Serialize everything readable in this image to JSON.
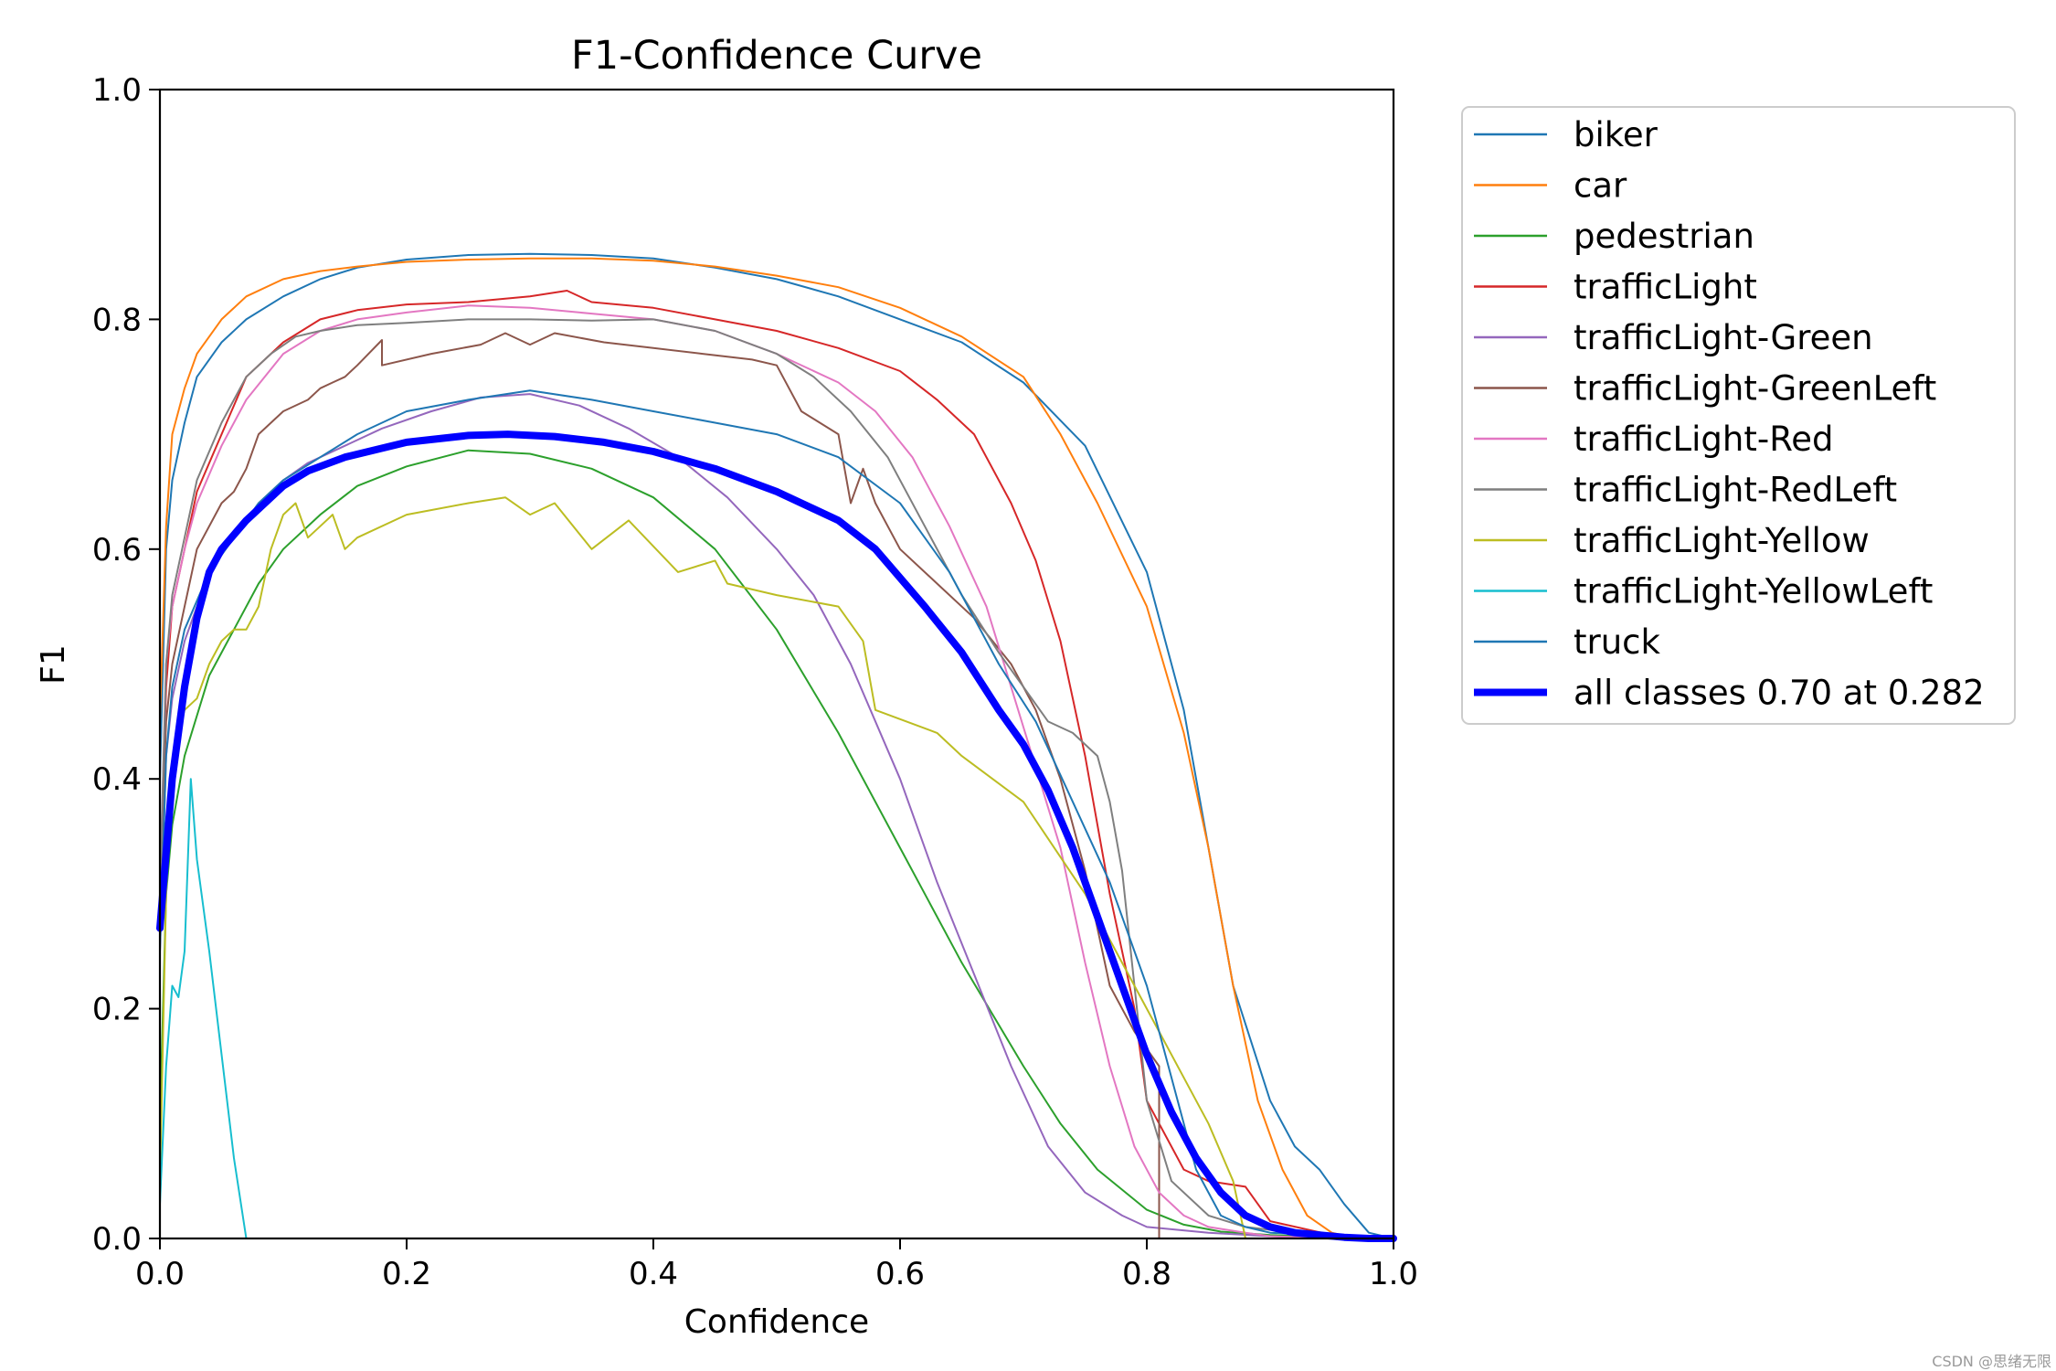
{
  "chart_data": {
    "type": "line",
    "title": "F1-Confidence Curve",
    "xlabel": "Confidence",
    "ylabel": "F1",
    "xlim": [
      0.0,
      1.0
    ],
    "ylim": [
      0.0,
      1.0
    ],
    "xticks": [
      "0.0",
      "0.2",
      "0.4",
      "0.6",
      "0.8",
      "1.0"
    ],
    "yticks": [
      "0.0",
      "0.2",
      "0.4",
      "0.6",
      "0.8",
      "1.0"
    ],
    "grid": false,
    "legend_position": "outside-right",
    "series": [
      {
        "name": "biker",
        "color": "#1f77b4",
        "width": 2,
        "x": [
          0.0,
          0.005,
          0.01,
          0.02,
          0.03,
          0.05,
          0.07,
          0.1,
          0.13,
          0.16,
          0.2,
          0.25,
          0.3,
          0.35,
          0.4,
          0.45,
          0.5,
          0.55,
          0.6,
          0.65,
          0.7,
          0.75,
          0.8,
          0.83,
          0.85,
          0.87,
          0.9,
          0.92,
          0.94,
          0.96,
          0.98,
          1.0
        ],
        "y": [
          0.4,
          0.6,
          0.66,
          0.71,
          0.75,
          0.78,
          0.8,
          0.82,
          0.835,
          0.845,
          0.852,
          0.856,
          0.857,
          0.856,
          0.853,
          0.845,
          0.835,
          0.82,
          0.8,
          0.78,
          0.745,
          0.69,
          0.58,
          0.46,
          0.34,
          0.22,
          0.12,
          0.08,
          0.06,
          0.03,
          0.005,
          0.0
        ]
      },
      {
        "name": "car",
        "color": "#ff7f0e",
        "width": 2,
        "x": [
          0.0,
          0.005,
          0.01,
          0.02,
          0.03,
          0.05,
          0.07,
          0.1,
          0.13,
          0.16,
          0.2,
          0.25,
          0.3,
          0.35,
          0.4,
          0.45,
          0.5,
          0.55,
          0.6,
          0.65,
          0.7,
          0.73,
          0.76,
          0.8,
          0.83,
          0.85,
          0.87,
          0.89,
          0.91,
          0.93,
          0.95,
          0.97,
          1.0
        ],
        "y": [
          0.45,
          0.62,
          0.7,
          0.74,
          0.77,
          0.8,
          0.82,
          0.835,
          0.842,
          0.846,
          0.85,
          0.852,
          0.853,
          0.853,
          0.851,
          0.846,
          0.838,
          0.828,
          0.81,
          0.785,
          0.75,
          0.7,
          0.64,
          0.55,
          0.44,
          0.34,
          0.22,
          0.12,
          0.06,
          0.02,
          0.005,
          0.0,
          0.0
        ]
      },
      {
        "name": "pedestrian",
        "color": "#2ca02c",
        "width": 2,
        "x": [
          0.0,
          0.005,
          0.01,
          0.02,
          0.04,
          0.06,
          0.08,
          0.1,
          0.13,
          0.16,
          0.2,
          0.25,
          0.3,
          0.35,
          0.4,
          0.45,
          0.5,
          0.55,
          0.6,
          0.65,
          0.7,
          0.73,
          0.76,
          0.8,
          0.83,
          0.86,
          0.9,
          0.95,
          1.0
        ],
        "y": [
          0.1,
          0.3,
          0.36,
          0.42,
          0.49,
          0.53,
          0.57,
          0.6,
          0.63,
          0.655,
          0.672,
          0.686,
          0.683,
          0.67,
          0.645,
          0.6,
          0.53,
          0.44,
          0.34,
          0.24,
          0.15,
          0.1,
          0.06,
          0.025,
          0.012,
          0.006,
          0.003,
          0.001,
          0.0
        ]
      },
      {
        "name": "trafficLight",
        "color": "#d62728",
        "width": 2,
        "x": [
          0.0,
          0.005,
          0.01,
          0.02,
          0.03,
          0.05,
          0.07,
          0.1,
          0.13,
          0.16,
          0.2,
          0.25,
          0.3,
          0.33,
          0.35,
          0.4,
          0.45,
          0.5,
          0.55,
          0.6,
          0.63,
          0.66,
          0.69,
          0.71,
          0.73,
          0.75,
          0.77,
          0.79,
          0.8,
          0.83,
          0.85,
          0.88,
          0.9,
          0.95,
          1.0
        ],
        "y": [
          0.3,
          0.48,
          0.55,
          0.6,
          0.65,
          0.7,
          0.75,
          0.78,
          0.8,
          0.808,
          0.813,
          0.815,
          0.82,
          0.825,
          0.815,
          0.81,
          0.8,
          0.79,
          0.775,
          0.755,
          0.73,
          0.7,
          0.64,
          0.59,
          0.52,
          0.42,
          0.3,
          0.2,
          0.12,
          0.06,
          0.05,
          0.045,
          0.015,
          0.003,
          0.0
        ]
      },
      {
        "name": "trafficLight-Green",
        "color": "#9467bd",
        "width": 2,
        "x": [
          0.0,
          0.005,
          0.01,
          0.02,
          0.04,
          0.06,
          0.08,
          0.1,
          0.12,
          0.15,
          0.18,
          0.22,
          0.26,
          0.3,
          0.34,
          0.38,
          0.42,
          0.46,
          0.5,
          0.53,
          0.56,
          0.6,
          0.63,
          0.66,
          0.69,
          0.72,
          0.75,
          0.78,
          0.8,
          0.85,
          0.9,
          0.95,
          1.0
        ],
        "y": [
          0.25,
          0.42,
          0.47,
          0.52,
          0.58,
          0.61,
          0.64,
          0.66,
          0.675,
          0.69,
          0.705,
          0.72,
          0.732,
          0.735,
          0.725,
          0.705,
          0.68,
          0.645,
          0.6,
          0.56,
          0.5,
          0.4,
          0.31,
          0.23,
          0.15,
          0.08,
          0.04,
          0.02,
          0.01,
          0.005,
          0.002,
          0.0,
          0.0
        ]
      },
      {
        "name": "trafficLight-GreenLeft",
        "color": "#8c564b",
        "width": 2,
        "x": [
          0.0,
          0.005,
          0.01,
          0.02,
          0.03,
          0.05,
          0.06,
          0.07,
          0.08,
          0.1,
          0.12,
          0.13,
          0.14,
          0.15,
          0.16,
          0.18,
          0.18,
          0.22,
          0.26,
          0.28,
          0.3,
          0.32,
          0.36,
          0.4,
          0.44,
          0.48,
          0.5,
          0.52,
          0.55,
          0.56,
          0.57,
          0.58,
          0.6,
          0.63,
          0.66,
          0.69,
          0.71,
          0.73,
          0.75,
          0.77,
          0.79,
          0.81,
          0.81,
          0.85,
          0.9,
          1.0
        ],
        "y": [
          0.3,
          0.45,
          0.5,
          0.55,
          0.6,
          0.64,
          0.65,
          0.67,
          0.7,
          0.72,
          0.73,
          0.74,
          0.745,
          0.75,
          0.76,
          0.782,
          0.76,
          0.77,
          0.778,
          0.788,
          0.778,
          0.788,
          0.78,
          0.775,
          0.77,
          0.765,
          0.76,
          0.72,
          0.7,
          0.64,
          0.67,
          0.64,
          0.6,
          0.57,
          0.54,
          0.5,
          0.46,
          0.4,
          0.32,
          0.22,
          0.18,
          0.15,
          0.0,
          0.0,
          0.0,
          0.0
        ]
      },
      {
        "name": "trafficLight-Red",
        "color": "#e377c2",
        "width": 2,
        "x": [
          0.0,
          0.005,
          0.01,
          0.02,
          0.03,
          0.05,
          0.07,
          0.1,
          0.13,
          0.16,
          0.2,
          0.25,
          0.3,
          0.35,
          0.4,
          0.45,
          0.5,
          0.55,
          0.58,
          0.61,
          0.64,
          0.67,
          0.69,
          0.71,
          0.73,
          0.75,
          0.77,
          0.79,
          0.81,
          0.83,
          0.85,
          0.88,
          0.9,
          0.95,
          1.0
        ],
        "y": [
          0.3,
          0.5,
          0.55,
          0.6,
          0.64,
          0.69,
          0.73,
          0.77,
          0.79,
          0.8,
          0.806,
          0.812,
          0.81,
          0.805,
          0.8,
          0.79,
          0.77,
          0.745,
          0.72,
          0.68,
          0.62,
          0.55,
          0.48,
          0.41,
          0.34,
          0.24,
          0.15,
          0.08,
          0.04,
          0.02,
          0.01,
          0.005,
          0.002,
          0.0,
          0.0
        ]
      },
      {
        "name": "trafficLight-RedLeft",
        "color": "#7f7f7f",
        "width": 2,
        "x": [
          0.0,
          0.005,
          0.01,
          0.02,
          0.03,
          0.05,
          0.07,
          0.09,
          0.11,
          0.13,
          0.16,
          0.2,
          0.25,
          0.3,
          0.35,
          0.4,
          0.45,
          0.5,
          0.53,
          0.56,
          0.59,
          0.62,
          0.65,
          0.68,
          0.7,
          0.72,
          0.74,
          0.76,
          0.77,
          0.78,
          0.79,
          0.8,
          0.82,
          0.85,
          0.88,
          0.92,
          1.0
        ],
        "y": [
          0.3,
          0.5,
          0.56,
          0.61,
          0.66,
          0.71,
          0.75,
          0.77,
          0.785,
          0.79,
          0.795,
          0.797,
          0.8,
          0.8,
          0.799,
          0.8,
          0.79,
          0.77,
          0.75,
          0.72,
          0.68,
          0.62,
          0.56,
          0.51,
          0.48,
          0.45,
          0.44,
          0.42,
          0.38,
          0.32,
          0.22,
          0.12,
          0.05,
          0.02,
          0.01,
          0.005,
          0.0
        ]
      },
      {
        "name": "trafficLight-Yellow",
        "color": "#bcbd22",
        "width": 2,
        "x": [
          0.0,
          0.005,
          0.01,
          0.015,
          0.02,
          0.03,
          0.04,
          0.05,
          0.06,
          0.07,
          0.08,
          0.09,
          0.1,
          0.11,
          0.12,
          0.13,
          0.14,
          0.15,
          0.16,
          0.2,
          0.25,
          0.28,
          0.3,
          0.32,
          0.35,
          0.38,
          0.42,
          0.45,
          0.46,
          0.5,
          0.55,
          0.57,
          0.58,
          0.63,
          0.65,
          0.7,
          0.75,
          0.8,
          0.85,
          0.87,
          0.88,
          1.0
        ],
        "y": [
          0.05,
          0.3,
          0.4,
          0.44,
          0.46,
          0.47,
          0.5,
          0.52,
          0.53,
          0.53,
          0.55,
          0.6,
          0.63,
          0.64,
          0.61,
          0.62,
          0.63,
          0.6,
          0.61,
          0.63,
          0.64,
          0.645,
          0.63,
          0.64,
          0.6,
          0.625,
          0.58,
          0.59,
          0.57,
          0.56,
          0.55,
          0.52,
          0.46,
          0.44,
          0.42,
          0.38,
          0.3,
          0.2,
          0.1,
          0.05,
          0.0,
          0.0
        ]
      },
      {
        "name": "trafficLight-YellowLeft",
        "color": "#17becf",
        "width": 2,
        "x": [
          0.0,
          0.005,
          0.01,
          0.015,
          0.02,
          0.025,
          0.03,
          0.04,
          0.05,
          0.06,
          0.07,
          1.0
        ],
        "y": [
          0.03,
          0.15,
          0.22,
          0.21,
          0.25,
          0.4,
          0.33,
          0.25,
          0.16,
          0.07,
          0.0,
          0.0
        ]
      },
      {
        "name": "truck",
        "color": "#1f77b4",
        "width": 2,
        "x": [
          0.0,
          0.005,
          0.01,
          0.02,
          0.04,
          0.06,
          0.08,
          0.1,
          0.13,
          0.16,
          0.2,
          0.25,
          0.3,
          0.35,
          0.4,
          0.45,
          0.5,
          0.55,
          0.6,
          0.64,
          0.68,
          0.71,
          0.74,
          0.77,
          0.8,
          0.82,
          0.84,
          0.86,
          0.88,
          0.9,
          1.0
        ],
        "y": [
          0.25,
          0.42,
          0.48,
          0.53,
          0.58,
          0.61,
          0.64,
          0.66,
          0.68,
          0.7,
          0.72,
          0.73,
          0.738,
          0.73,
          0.72,
          0.71,
          0.7,
          0.68,
          0.64,
          0.58,
          0.5,
          0.45,
          0.38,
          0.31,
          0.22,
          0.14,
          0.06,
          0.02,
          0.01,
          0.005,
          0.0
        ]
      },
      {
        "name": "all classes 0.70 at 0.282",
        "color": "#0000ff",
        "width": 8,
        "x": [
          0.0,
          0.01,
          0.02,
          0.03,
          0.04,
          0.05,
          0.07,
          0.1,
          0.12,
          0.15,
          0.2,
          0.25,
          0.282,
          0.32,
          0.36,
          0.4,
          0.45,
          0.5,
          0.55,
          0.58,
          0.62,
          0.65,
          0.68,
          0.7,
          0.72,
          0.74,
          0.76,
          0.78,
          0.8,
          0.82,
          0.84,
          0.86,
          0.88,
          0.9,
          0.92,
          0.94,
          0.96,
          0.98,
          1.0
        ],
        "y": [
          0.27,
          0.4,
          0.48,
          0.54,
          0.58,
          0.6,
          0.625,
          0.655,
          0.668,
          0.68,
          0.693,
          0.699,
          0.7,
          0.698,
          0.693,
          0.685,
          0.67,
          0.65,
          0.625,
          0.6,
          0.55,
          0.51,
          0.46,
          0.43,
          0.39,
          0.34,
          0.28,
          0.22,
          0.16,
          0.11,
          0.07,
          0.04,
          0.02,
          0.01,
          0.005,
          0.003,
          0.001,
          0.0,
          0.0
        ]
      }
    ]
  },
  "watermark": "CSDN @思绪无限"
}
